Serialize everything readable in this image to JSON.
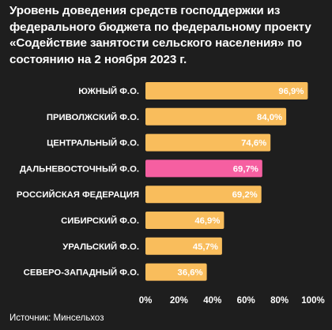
{
  "title": "Уровень доведения средств господдержки из федерального бюджета по федеральному проекту «Содействие занятости сельского населения» по состоянию на 2 ноября 2023 г.",
  "source": "Источник: Минсельхоз",
  "colors": {
    "background": "#1e1e1e",
    "bar": "#f9bd5c",
    "highlight": "#f65fa1",
    "text": "#ffffff",
    "value_text": "#ffffff"
  },
  "chart_data": {
    "type": "bar",
    "orientation": "horizontal",
    "categories": [
      "ЮЖНЫЙ Ф.О.",
      "ПРИВОЛЖСКИЙ Ф.О.",
      "ЦЕНТРАЛЬНЫЙ Ф.О.",
      "ДАЛЬНЕВОСТОЧНЫЙ Ф.О.",
      "РОССИЙСКАЯ ФЕДЕРАЦИЯ",
      "СИБИРСКИЙ Ф.О.",
      "УРАЛЬСКИЙ Ф.О.",
      "СЕВЕРО-ЗАПАДНЫЙ Ф.О."
    ],
    "values": [
      96.9,
      84.0,
      74.6,
      69.7,
      69.2,
      46.9,
      45.7,
      36.6
    ],
    "value_labels": [
      "96,9%",
      "84,0%",
      "74,6%",
      "69,7%",
      "69,2%",
      "46,9%",
      "45,7%",
      "36,6%"
    ],
    "highlighted_index": 3,
    "xlim": [
      0,
      100
    ],
    "xticks": [
      0,
      20,
      40,
      60,
      80,
      100
    ],
    "xtick_labels": [
      "0%",
      "20%",
      "40%",
      "60%",
      "80%",
      "100%"
    ],
    "grid": false,
    "legend": "none"
  }
}
